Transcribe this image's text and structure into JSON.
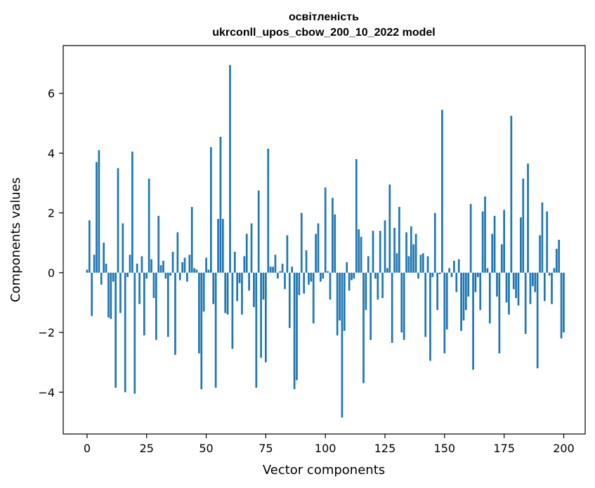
{
  "chart_data": {
    "type": "bar",
    "title": "освітленість",
    "subtitle": "ukrconll_upos_cbow_200_10_2022 model",
    "xlabel": "Vector components",
    "ylabel": "Components values",
    "xlim": [
      -10,
      209
    ],
    "ylim": [
      -5.4,
      7.6
    ],
    "x_ticks": [
      0,
      25,
      50,
      75,
      100,
      125,
      150,
      175,
      200
    ],
    "y_ticks": [
      -4,
      -2,
      0,
      2,
      4,
      6
    ],
    "x_tick_labels": [
      "0",
      "25",
      "50",
      "75",
      "100",
      "125",
      "150",
      "175",
      "200"
    ],
    "y_tick_labels": [
      "−4",
      "−2",
      "0",
      "2",
      "4",
      "6"
    ],
    "grid": false,
    "color": "#1f77b4",
    "values": [
      0.1,
      1.75,
      -1.45,
      0.6,
      3.7,
      4.1,
      -0.4,
      1.0,
      0.3,
      -1.5,
      -1.55,
      -0.3,
      -3.85,
      3.5,
      -1.35,
      1.65,
      -4.0,
      -0.15,
      0.6,
      4.05,
      -4.05,
      0.3,
      -1.05,
      0.55,
      -2.1,
      -0.2,
      3.15,
      0.45,
      -0.85,
      -2.25,
      1.9,
      0.25,
      0.4,
      -0.2,
      -2.15,
      -0.1,
      0.7,
      -2.75,
      1.35,
      -0.25,
      0.35,
      0.5,
      -0.3,
      0.6,
      2.2,
      0.15,
      0.1,
      -2.7,
      -3.9,
      -1.3,
      0.5,
      0.1,
      4.2,
      -1.05,
      -3.85,
      1.8,
      4.55,
      1.8,
      -1.35,
      -1.4,
      6.95,
      -2.55,
      0.7,
      -0.95,
      -0.35,
      -1.4,
      0.55,
      1.3,
      -0.6,
      1.65,
      -1.15,
      -3.85,
      2.75,
      -2.85,
      -0.9,
      -3.0,
      4.15,
      0.2,
      0.2,
      0.6,
      -0.2,
      0.05,
      0.3,
      -0.55,
      1.25,
      -1.85,
      0.2,
      -3.9,
      -3.6,
      -0.75,
      2.0,
      -0.7,
      0.75,
      -0.4,
      -0.3,
      -1.7,
      1.3,
      1.65,
      -0.3,
      -0.2,
      2.85,
      0.05,
      -0.9,
      2.5,
      1.95,
      -2.1,
      -1.6,
      -4.85,
      -1.95,
      0.35,
      -0.6,
      -0.25,
      -0.2,
      3.8,
      1.45,
      1.2,
      -3.7,
      -1.25,
      0.55,
      -2.25,
      1.4,
      -0.2,
      -0.9,
      1.4,
      -0.85,
      1.75,
      0.15,
      2.95,
      -2.35,
      1.5,
      0.65,
      2.2,
      -2.0,
      -2.25,
      1.35,
      0.55,
      1.55,
      0.95,
      1.3,
      -0.2,
      0.6,
      0.65,
      -2.15,
      0.55,
      -2.95,
      -0.15,
      2.0,
      -1.25,
      -0.05,
      5.45,
      -2.7,
      -1.9,
      0.15,
      -0.15,
      0.4,
      -0.65,
      0.45,
      -1.95,
      -1.6,
      -1.25,
      -0.8,
      2.3,
      -3.25,
      -0.65,
      -0.15,
      -1.25,
      2.05,
      2.55,
      0.15,
      -1.7,
      1.3,
      1.9,
      -0.8,
      -2.7,
      0.95,
      2.1,
      -1.0,
      -1.4,
      5.25,
      -0.55,
      -0.85,
      -1.1,
      1.85,
      3.15,
      -2.05,
      3.65,
      -1.05,
      -0.45,
      -0.65,
      -3.2,
      1.25,
      2.35,
      -0.95,
      2.05,
      -0.1,
      -1.05,
      0.15,
      0.8,
      1.1,
      -2.2,
      -2.0
    ]
  }
}
